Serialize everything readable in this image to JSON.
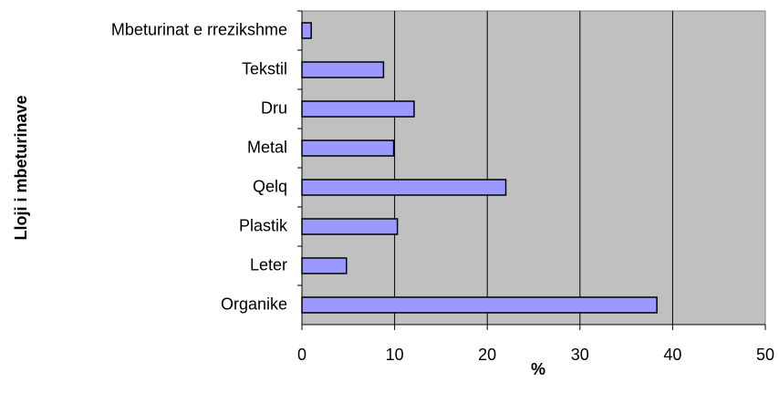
{
  "chart_data": {
    "type": "barh",
    "xlabel": "%",
    "ylabel": "Lloji i mbeturinave",
    "categories": [
      "Mbeturinat e rrezikshme",
      "Tekstil",
      "Dru",
      "Metal",
      "Qelq",
      "Plastik",
      "Leter",
      "Organike"
    ],
    "values": [
      1,
      8.8,
      12.1,
      9.9,
      22,
      10.3,
      4.8,
      38.3
    ],
    "color": "#9999ff",
    "xlim": [
      0,
      50
    ],
    "xticks": [
      0,
      10,
      20,
      30,
      40,
      50
    ],
    "grid": true
  }
}
